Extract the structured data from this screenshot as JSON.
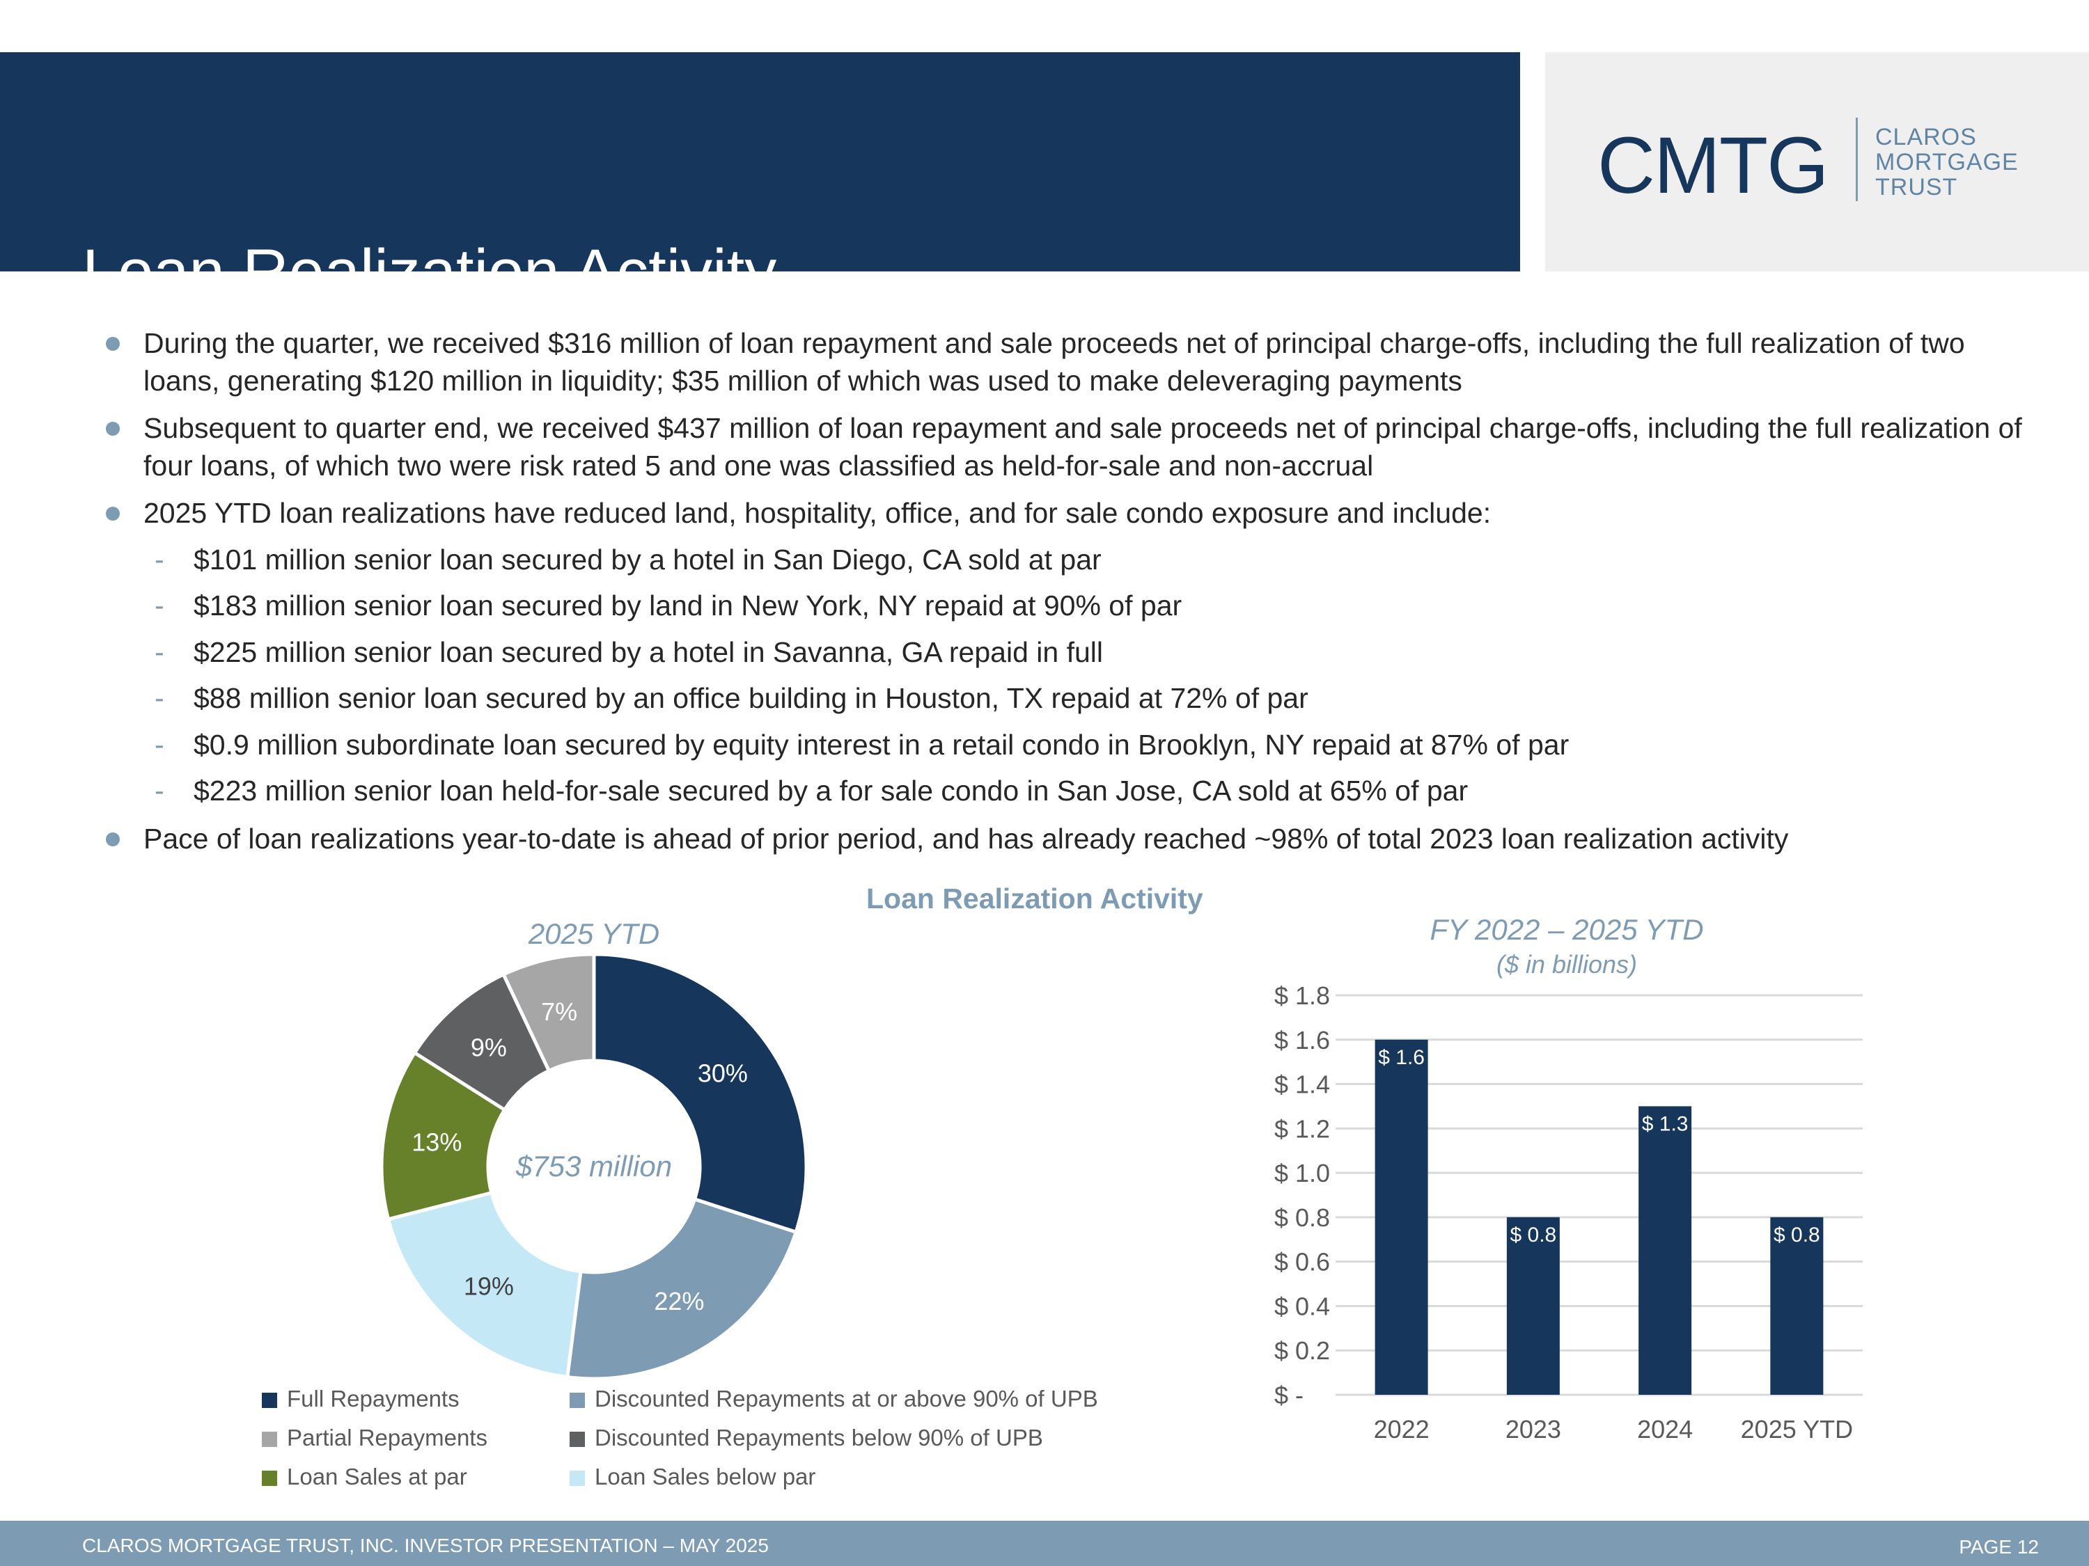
{
  "header": {
    "title": "Loan Realization Activity"
  },
  "logo": {
    "mark": "CMTG",
    "line1": "CLAROS",
    "line2": "MORTGAGE",
    "line3": "TRUST"
  },
  "bullets": [
    "During the quarter, we received $316 million of loan repayment and sale proceeds net of principal charge-offs, including the full realization of two loans, generating $120 million in liquidity; $35 million of which was used to make deleveraging payments",
    "Subsequent to quarter end, we received $437 million of loan repayment and sale proceeds net of principal charge-offs, including the full realization of four loans, of which two were risk rated 5 and one was classified as held-for-sale and non-accrual",
    "2025 YTD loan realizations have reduced land, hospitality, office, and for sale condo exposure and include:",
    "Pace of loan realizations year-to-date is ahead of prior period, and has already reached ~98% of total 2023 loan realization activity"
  ],
  "sub_bullets": [
    "$101 million senior loan secured by a hotel in San Diego, CA sold at par",
    "$183 million senior loan secured by land in New York, NY repaid at 90% of par",
    "$225 million senior loan secured by a hotel in Savanna, GA repaid in full",
    "$88 million senior loan secured by an office building in Houston, TX repaid at 72% of par",
    "$0.9 million subordinate loan secured by equity interest in a retail condo in Brooklyn, NY repaid at 87% of par",
    "$223 million senior loan held-for-sale secured by a for sale condo in San Jose, CA sold at 65% of par"
  ],
  "chart_section_title": "Loan Realization Activity",
  "colors": {
    "navy": "#16365c",
    "steel": "#7d9bb3",
    "light_gray": "#a6a6a6",
    "dark_gray": "#5f6062",
    "green": "#66812a",
    "light_blue": "#c5e8f7"
  },
  "chart_data": [
    {
      "type": "pie",
      "title": "2025 YTD",
      "center_label": "$753 million",
      "slices": [
        {
          "name": "Full Repayments",
          "value": 30,
          "label": "30%",
          "color": "#16365c"
        },
        {
          "name": "Discounted Repayments at or above 90% of UPB",
          "value": 22,
          "label": "22%",
          "color": "#7d9bb3"
        },
        {
          "name": "Loan Sales below par",
          "value": 19,
          "label": "19%",
          "color": "#c5e8f7"
        },
        {
          "name": "Loan Sales at par",
          "value": 13,
          "label": "13%",
          "color": "#66812a"
        },
        {
          "name": "Discounted Repayments below 90% of UPB",
          "value": 9,
          "label": "9%",
          "color": "#5f6062"
        },
        {
          "name": "Partial Repayments",
          "value": 7,
          "label": "7%",
          "color": "#a6a6a6"
        }
      ],
      "legend": [
        {
          "name": "Full Repayments",
          "color": "#16365c"
        },
        {
          "name": "Discounted Repayments at or above 90% of UPB",
          "color": "#7d9bb3"
        },
        {
          "name": "Partial Repayments",
          "color": "#a6a6a6"
        },
        {
          "name": "Discounted Repayments below 90% of UPB",
          "color": "#5f6062"
        },
        {
          "name": "Loan Sales at par",
          "color": "#66812a"
        },
        {
          "name": "Loan Sales below par",
          "color": "#c5e8f7"
        }
      ],
      "legend_placement": "bottom"
    },
    {
      "type": "bar",
      "title": "FY 2022 – 2025 YTD",
      "subtitle": "($ in billions)",
      "categories": [
        "2022",
        "2023",
        "2024",
        "2025 YTD"
      ],
      "values": [
        1.6,
        0.8,
        1.3,
        0.8
      ],
      "data_labels": [
        "$ 1.6",
        "$ 0.8",
        "$ 1.3",
        "$ 0.8"
      ],
      "ylim": [
        0,
        1.8
      ],
      "yticks": [
        0,
        0.2,
        0.4,
        0.6,
        0.8,
        1.0,
        1.2,
        1.4,
        1.6,
        1.8
      ],
      "ytick_labels": [
        "$ -",
        "$ 0.2",
        "$ 0.4",
        "$ 0.6",
        "$ 0.8",
        "$ 1.0",
        "$ 1.2",
        "$ 1.4",
        "$ 1.6",
        "$ 1.8"
      ],
      "grid": true,
      "color": "#16365c"
    }
  ],
  "footer": {
    "left": "CLAROS MORTGAGE TRUST, INC. INVESTOR PRESENTATION – MAY 2025",
    "right": "PAGE 12"
  }
}
